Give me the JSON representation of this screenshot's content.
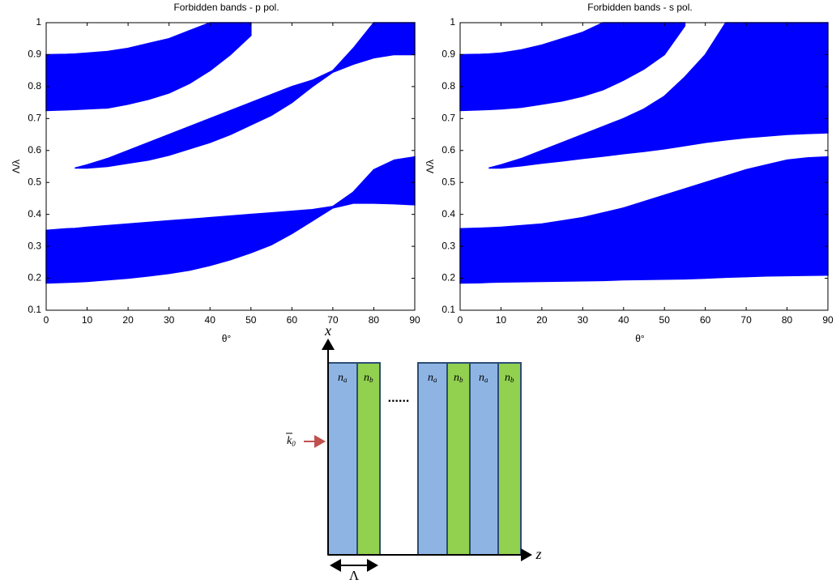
{
  "chart_data": [
    {
      "type": "band",
      "title": "Forbidden bands - p pol.",
      "xlabel": "θ°",
      "ylabel": "Λ/λ",
      "x": [
        0,
        5,
        7,
        10,
        15,
        20,
        25,
        30,
        35,
        40,
        45,
        50,
        55,
        60,
        65,
        70,
        75,
        80,
        85,
        90
      ],
      "xlim": [
        0,
        90
      ],
      "xticks": [
        0,
        10,
        20,
        30,
        40,
        50,
        60,
        70,
        80,
        90
      ],
      "ylim": [
        0.1,
        1
      ],
      "yticks": [
        0.1,
        0.2,
        0.3,
        0.4,
        0.5,
        0.6,
        0.7,
        0.8,
        0.9,
        1
      ],
      "bands": [
        {
          "color": "#0000ff",
          "lower": [
            0.725,
            0.727,
            0.728,
            0.73,
            0.733,
            0.745,
            0.76,
            0.78,
            0.81,
            0.85,
            0.9,
            0.96,
            null,
            null,
            null,
            null,
            null,
            null,
            null,
            null
          ],
          "upper": [
            0.9,
            0.901,
            0.902,
            0.905,
            0.91,
            0.92,
            0.935,
            0.95,
            0.975,
            1,
            1,
            1,
            null,
            null,
            null,
            null,
            null,
            null,
            null,
            null
          ]
        },
        {
          "color": "#0000ff",
          "lower": [
            null,
            null,
            0.545,
            0.545,
            0.55,
            0.56,
            0.57,
            0.585,
            0.605,
            0.625,
            0.65,
            0.68,
            0.71,
            0.75,
            0.8,
            0.845,
            0.87,
            0.89,
            0.9,
            0.9
          ],
          "upper": [
            null,
            null,
            0.545,
            0.555,
            0.575,
            0.6,
            0.625,
            0.65,
            0.675,
            0.7,
            0.725,
            0.75,
            0.775,
            0.8,
            0.82,
            0.85,
            0.92,
            1,
            1,
            1
          ]
        },
        {
          "color": "#0000ff",
          "lower": [
            0.185,
            0.187,
            0.188,
            0.19,
            0.195,
            0.2,
            0.207,
            0.215,
            0.225,
            0.24,
            0.258,
            0.28,
            0.305,
            0.34,
            0.38,
            0.42,
            0.435,
            0.435,
            0.433,
            0.43
          ],
          "upper": [
            0.35,
            0.355,
            0.356,
            0.36,
            0.365,
            0.37,
            0.375,
            0.38,
            0.385,
            0.39,
            0.395,
            0.4,
            0.405,
            0.41,
            0.415,
            0.425,
            0.47,
            0.54,
            0.57,
            0.58
          ]
        }
      ]
    },
    {
      "type": "band",
      "title": "Forbidden bands - s pol.",
      "xlabel": "θ°",
      "ylabel": "Λ/λ",
      "x": [
        0,
        5,
        7,
        10,
        15,
        20,
        25,
        30,
        35,
        40,
        45,
        50,
        55,
        60,
        65,
        70,
        75,
        80,
        85,
        90
      ],
      "xlim": [
        0,
        90
      ],
      "xticks": [
        0,
        10,
        20,
        30,
        40,
        50,
        60,
        70,
        80,
        90
      ],
      "ylim": [
        0.1,
        1
      ],
      "yticks": [
        0.1,
        0.2,
        0.3,
        0.4,
        0.5,
        0.6,
        0.7,
        0.8,
        0.9,
        1
      ],
      "bands": [
        {
          "color": "#0000ff",
          "lower": [
            0.725,
            0.727,
            0.728,
            0.73,
            0.735,
            0.745,
            0.755,
            0.77,
            0.79,
            0.82,
            0.855,
            0.9,
            0.99,
            null,
            null,
            null,
            null,
            null,
            null,
            null
          ],
          "upper": [
            0.9,
            0.901,
            0.902,
            0.905,
            0.915,
            0.93,
            0.95,
            0.97,
            1,
            1,
            1,
            1,
            1,
            null,
            null,
            null,
            null,
            null,
            null,
            null
          ]
        },
        {
          "color": "#0000ff",
          "lower": [
            null,
            null,
            0.545,
            0.545,
            0.552,
            0.56,
            0.567,
            0.575,
            0.582,
            0.59,
            0.597,
            0.605,
            0.615,
            0.625,
            0.633,
            0.64,
            0.645,
            0.65,
            0.653,
            0.655
          ],
          "upper": [
            null,
            null,
            0.545,
            0.555,
            0.575,
            0.6,
            0.625,
            0.65,
            0.675,
            0.7,
            0.73,
            0.77,
            0.83,
            0.9,
            1,
            1,
            1,
            1,
            1,
            1
          ]
        },
        {
          "color": "#0000ff",
          "lower": [
            0.185,
            0.186,
            0.187,
            0.188,
            0.189,
            0.19,
            0.191,
            0.192,
            0.193,
            0.195,
            0.196,
            0.197,
            0.198,
            0.2,
            0.203,
            0.205,
            0.207,
            0.208,
            0.209,
            0.21
          ],
          "upper": [
            0.355,
            0.357,
            0.358,
            0.36,
            0.365,
            0.37,
            0.38,
            0.39,
            0.405,
            0.42,
            0.44,
            0.46,
            0.48,
            0.5,
            0.52,
            0.54,
            0.555,
            0.57,
            0.577,
            0.58
          ]
        }
      ]
    }
  ],
  "diagram": {
    "axis_x": "x",
    "axis_z": "z",
    "period": "Λ",
    "dots": "......",
    "wave": {
      "symbol": "k",
      "subscript": "0"
    },
    "layers": [
      {
        "symbol": "n",
        "subscript": "a"
      },
      {
        "symbol": "n",
        "subscript": "b"
      },
      {
        "symbol": "n",
        "subscript": "a"
      },
      {
        "symbol": "n",
        "subscript": "b"
      },
      {
        "symbol": "n",
        "subscript": "a"
      },
      {
        "symbol": "n",
        "subscript": "b"
      }
    ]
  }
}
